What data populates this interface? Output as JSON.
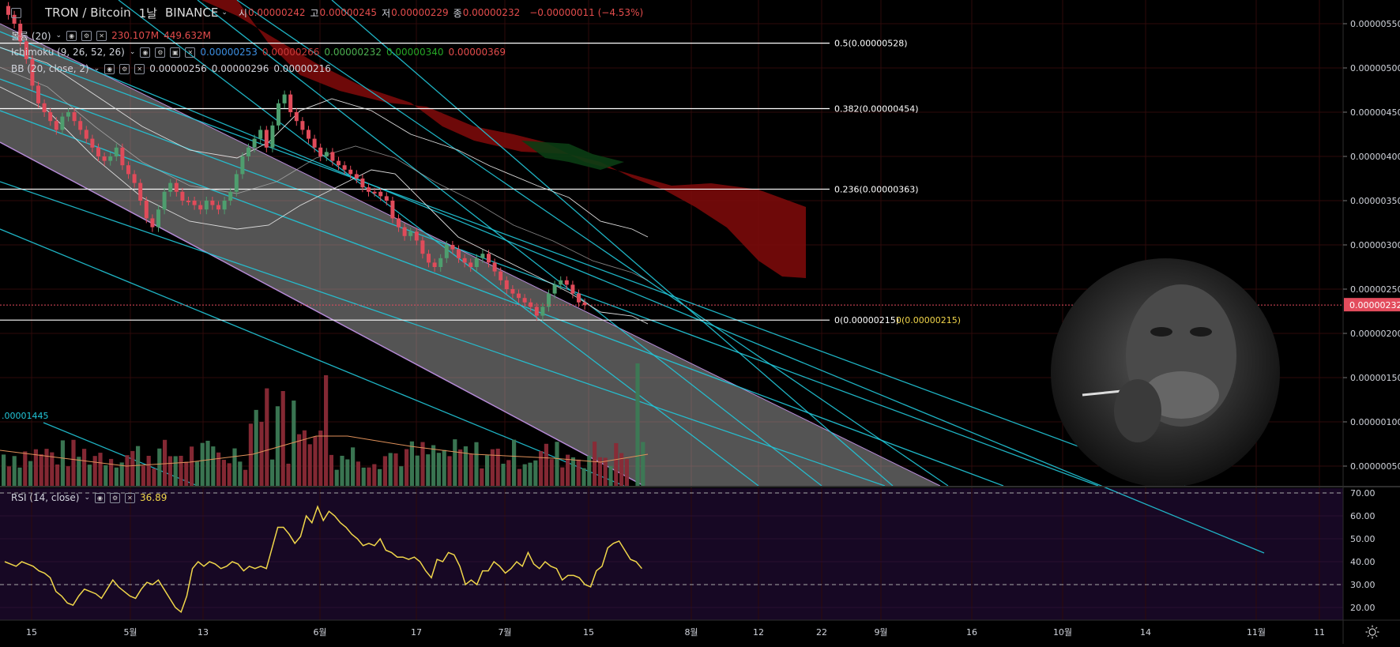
{
  "header": {
    "symbol": "TRON / Bitcoin",
    "interval": "1날",
    "exchange": "BINANCE",
    "ohlc": [
      {
        "k": "시",
        "v": "0.00000242"
      },
      {
        "k": "고",
        "v": "0.00000245"
      },
      {
        "k": "저",
        "v": "0.00000229"
      },
      {
        "k": "종",
        "v": "0.00000232"
      }
    ],
    "change": "−0.00000011 (−4.53%)"
  },
  "indicators": {
    "volume": {
      "name": "볼륨 (20)",
      "v1": "230.107M",
      "v2": "449.632M"
    },
    "ichimoku": {
      "name": "Ichimoku (9, 26, 52, 26)",
      "values": [
        {
          "v": "0.00000253",
          "color": "#3c8ee0"
        },
        {
          "v": "0.00000266",
          "color": "#c83a3a"
        },
        {
          "v": "0.00000232",
          "color": "#4caf50"
        },
        {
          "v": "0.00000340",
          "color": "#26a626"
        },
        {
          "v": "0.00000369",
          "color": "#e34c4c"
        }
      ]
    },
    "bb": {
      "name": "BB (20, close, 2)",
      "values": [
        "0.00000256",
        "0.00000296",
        "0.00000216"
      ]
    }
  },
  "fib": [
    {
      "label": "0.5(0.00000528)",
      "price": 5.28,
      "color": "#ffffff"
    },
    {
      "label": "0.382(0.00000454)",
      "price": 4.54,
      "color": "#ffffff"
    },
    {
      "label": "0.236(0.00000363)",
      "price": 3.63,
      "color": "#ffffff"
    },
    {
      "label": "0(0.00000215)",
      "price": 2.15,
      "color": "#ffffff"
    }
  ],
  "fib_extra_label": "0(0.00000215)",
  "channel_label": ".00001445",
  "price_axis": {
    "ticks": [
      "0.00000550",
      "0.00000500",
      "0.00000450",
      "0.00000400",
      "0.00000350",
      "0.00000300",
      "0.00000250",
      "0.00000200",
      "0.00000150",
      "0.00000100",
      "0.00000050"
    ],
    "tick_values": [
      5.5,
      5.0,
      4.5,
      4.0,
      3.5,
      3.0,
      2.5,
      2.0,
      1.5,
      1.0,
      0.5
    ],
    "current": "0.00000232",
    "current_value": 2.32
  },
  "rsi": {
    "name": "RSI (14, close)",
    "value": "36.89",
    "ticks": [
      "70.00",
      "60.00",
      "50.00",
      "40.00",
      "30.00",
      "20.00"
    ],
    "tick_values": [
      70,
      60,
      50,
      40,
      30,
      20
    ],
    "upper": 70,
    "lower": 30,
    "series": [
      40,
      39,
      38,
      40,
      39,
      38,
      36,
      35,
      33,
      27,
      25,
      22,
      21,
      25,
      28,
      27,
      26,
      24,
      28,
      32,
      29,
      27,
      25,
      24,
      28,
      31,
      30,
      32,
      28,
      24,
      20,
      18,
      25,
      37,
      40,
      38,
      40,
      39,
      37,
      38,
      40,
      39,
      36,
      38,
      37,
      38,
      37,
      46,
      55,
      55,
      52,
      48,
      51,
      60,
      57,
      64,
      58,
      62,
      60,
      57,
      55,
      52,
      50,
      47,
      48,
      47,
      50,
      45,
      44,
      42,
      42,
      41,
      42,
      40,
      36,
      33,
      41,
      40,
      44,
      43,
      38,
      30,
      32,
      30,
      36,
      36,
      40,
      38,
      35,
      37,
      40,
      38,
      44,
      39,
      37,
      40,
      38,
      37,
      32,
      34,
      34,
      33,
      30,
      29,
      36,
      38,
      46,
      48,
      49,
      45,
      41,
      40,
      37
    ]
  },
  "time_axis": {
    "labels": [
      "15",
      "5월",
      "13",
      "6월",
      "17",
      "7월",
      "15",
      "8월",
      "12",
      "22",
      "9월",
      "16",
      "10월",
      "14",
      "11월",
      "11"
    ]
  },
  "colors": {
    "bull": "#4e9e6e",
    "bear": "#e04b5a",
    "cloud_bear": "#7a0a0a",
    "cloud_bull": "#0b3d14",
    "channel": "#22c6d8",
    "rsi": "#f0d64a",
    "rsi_bg": "#170824",
    "grid": "#2e0a0a",
    "price_tag": "#e34c5d"
  },
  "icons": [
    "eye-icon",
    "gear-icon",
    "close-icon",
    "lock-icon",
    "chevron-down-icon",
    "sun-icon"
  ]
}
